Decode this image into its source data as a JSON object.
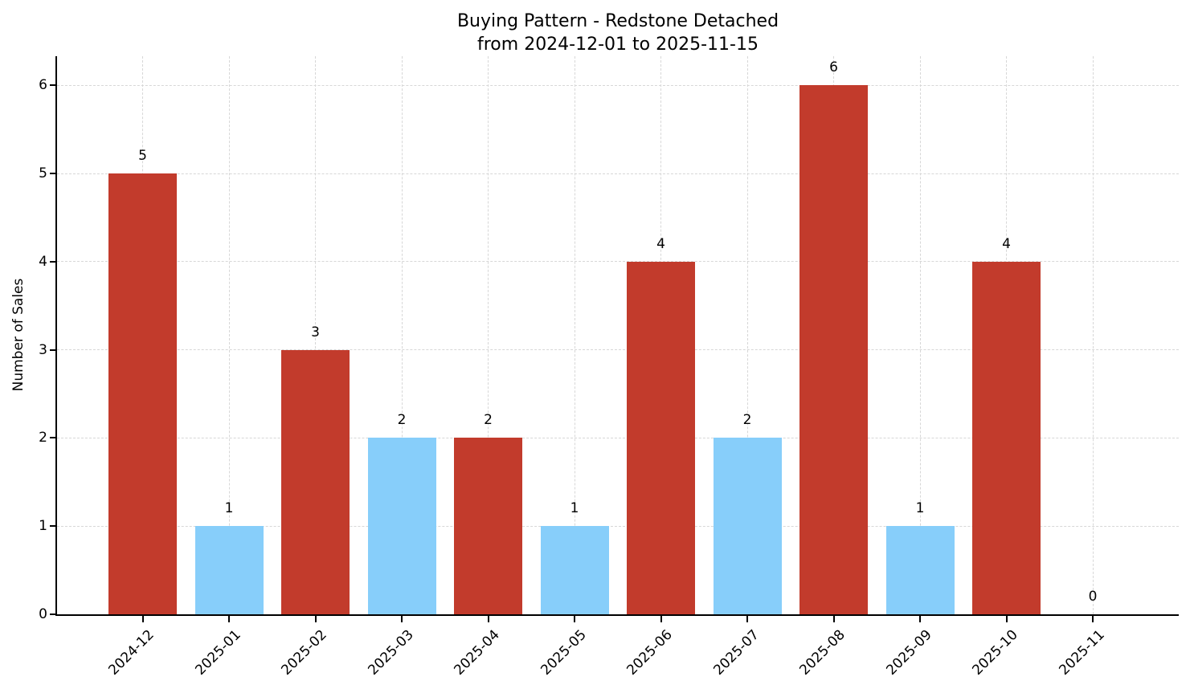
{
  "chart_data": {
    "type": "bar",
    "title": "Buying Pattern - Redstone Detached",
    "subtitle": "from 2024-12-01 to 2025-11-15",
    "xlabel": "",
    "ylabel": "Number of Sales",
    "categories": [
      "2024-12",
      "2025-01",
      "2025-02",
      "2025-03",
      "2025-04",
      "2025-05",
      "2025-06",
      "2025-07",
      "2025-08",
      "2025-09",
      "2025-10",
      "2025-11"
    ],
    "values": [
      5,
      1,
      3,
      2,
      2,
      1,
      4,
      2,
      6,
      1,
      4,
      0
    ],
    "value_labels": [
      "5",
      "1",
      "3",
      "2",
      "2",
      "1",
      "4",
      "2",
      "6",
      "1",
      "4",
      "0"
    ],
    "bar_colors": [
      "#c23b2c",
      "#87cefa",
      "#c23b2c",
      "#87cefa",
      "#c23b2c",
      "#87cefa",
      "#c23b2c",
      "#87cefa",
      "#c23b2c",
      "#87cefa",
      "#c23b2c",
      "#87cefa"
    ],
    "yticks": [
      0,
      1,
      2,
      3,
      4,
      5,
      6
    ],
    "ylim": [
      0,
      6.33
    ],
    "grid": true,
    "grid_linestyle": "dashed",
    "legend_position": "none",
    "colors": {
      "red_bar": "#c23b2c",
      "blue_bar": "#87cefa",
      "grid": "#d7d7d7",
      "axis": "#000000",
      "text": "#000000",
      "background": "#ffffff"
    }
  }
}
